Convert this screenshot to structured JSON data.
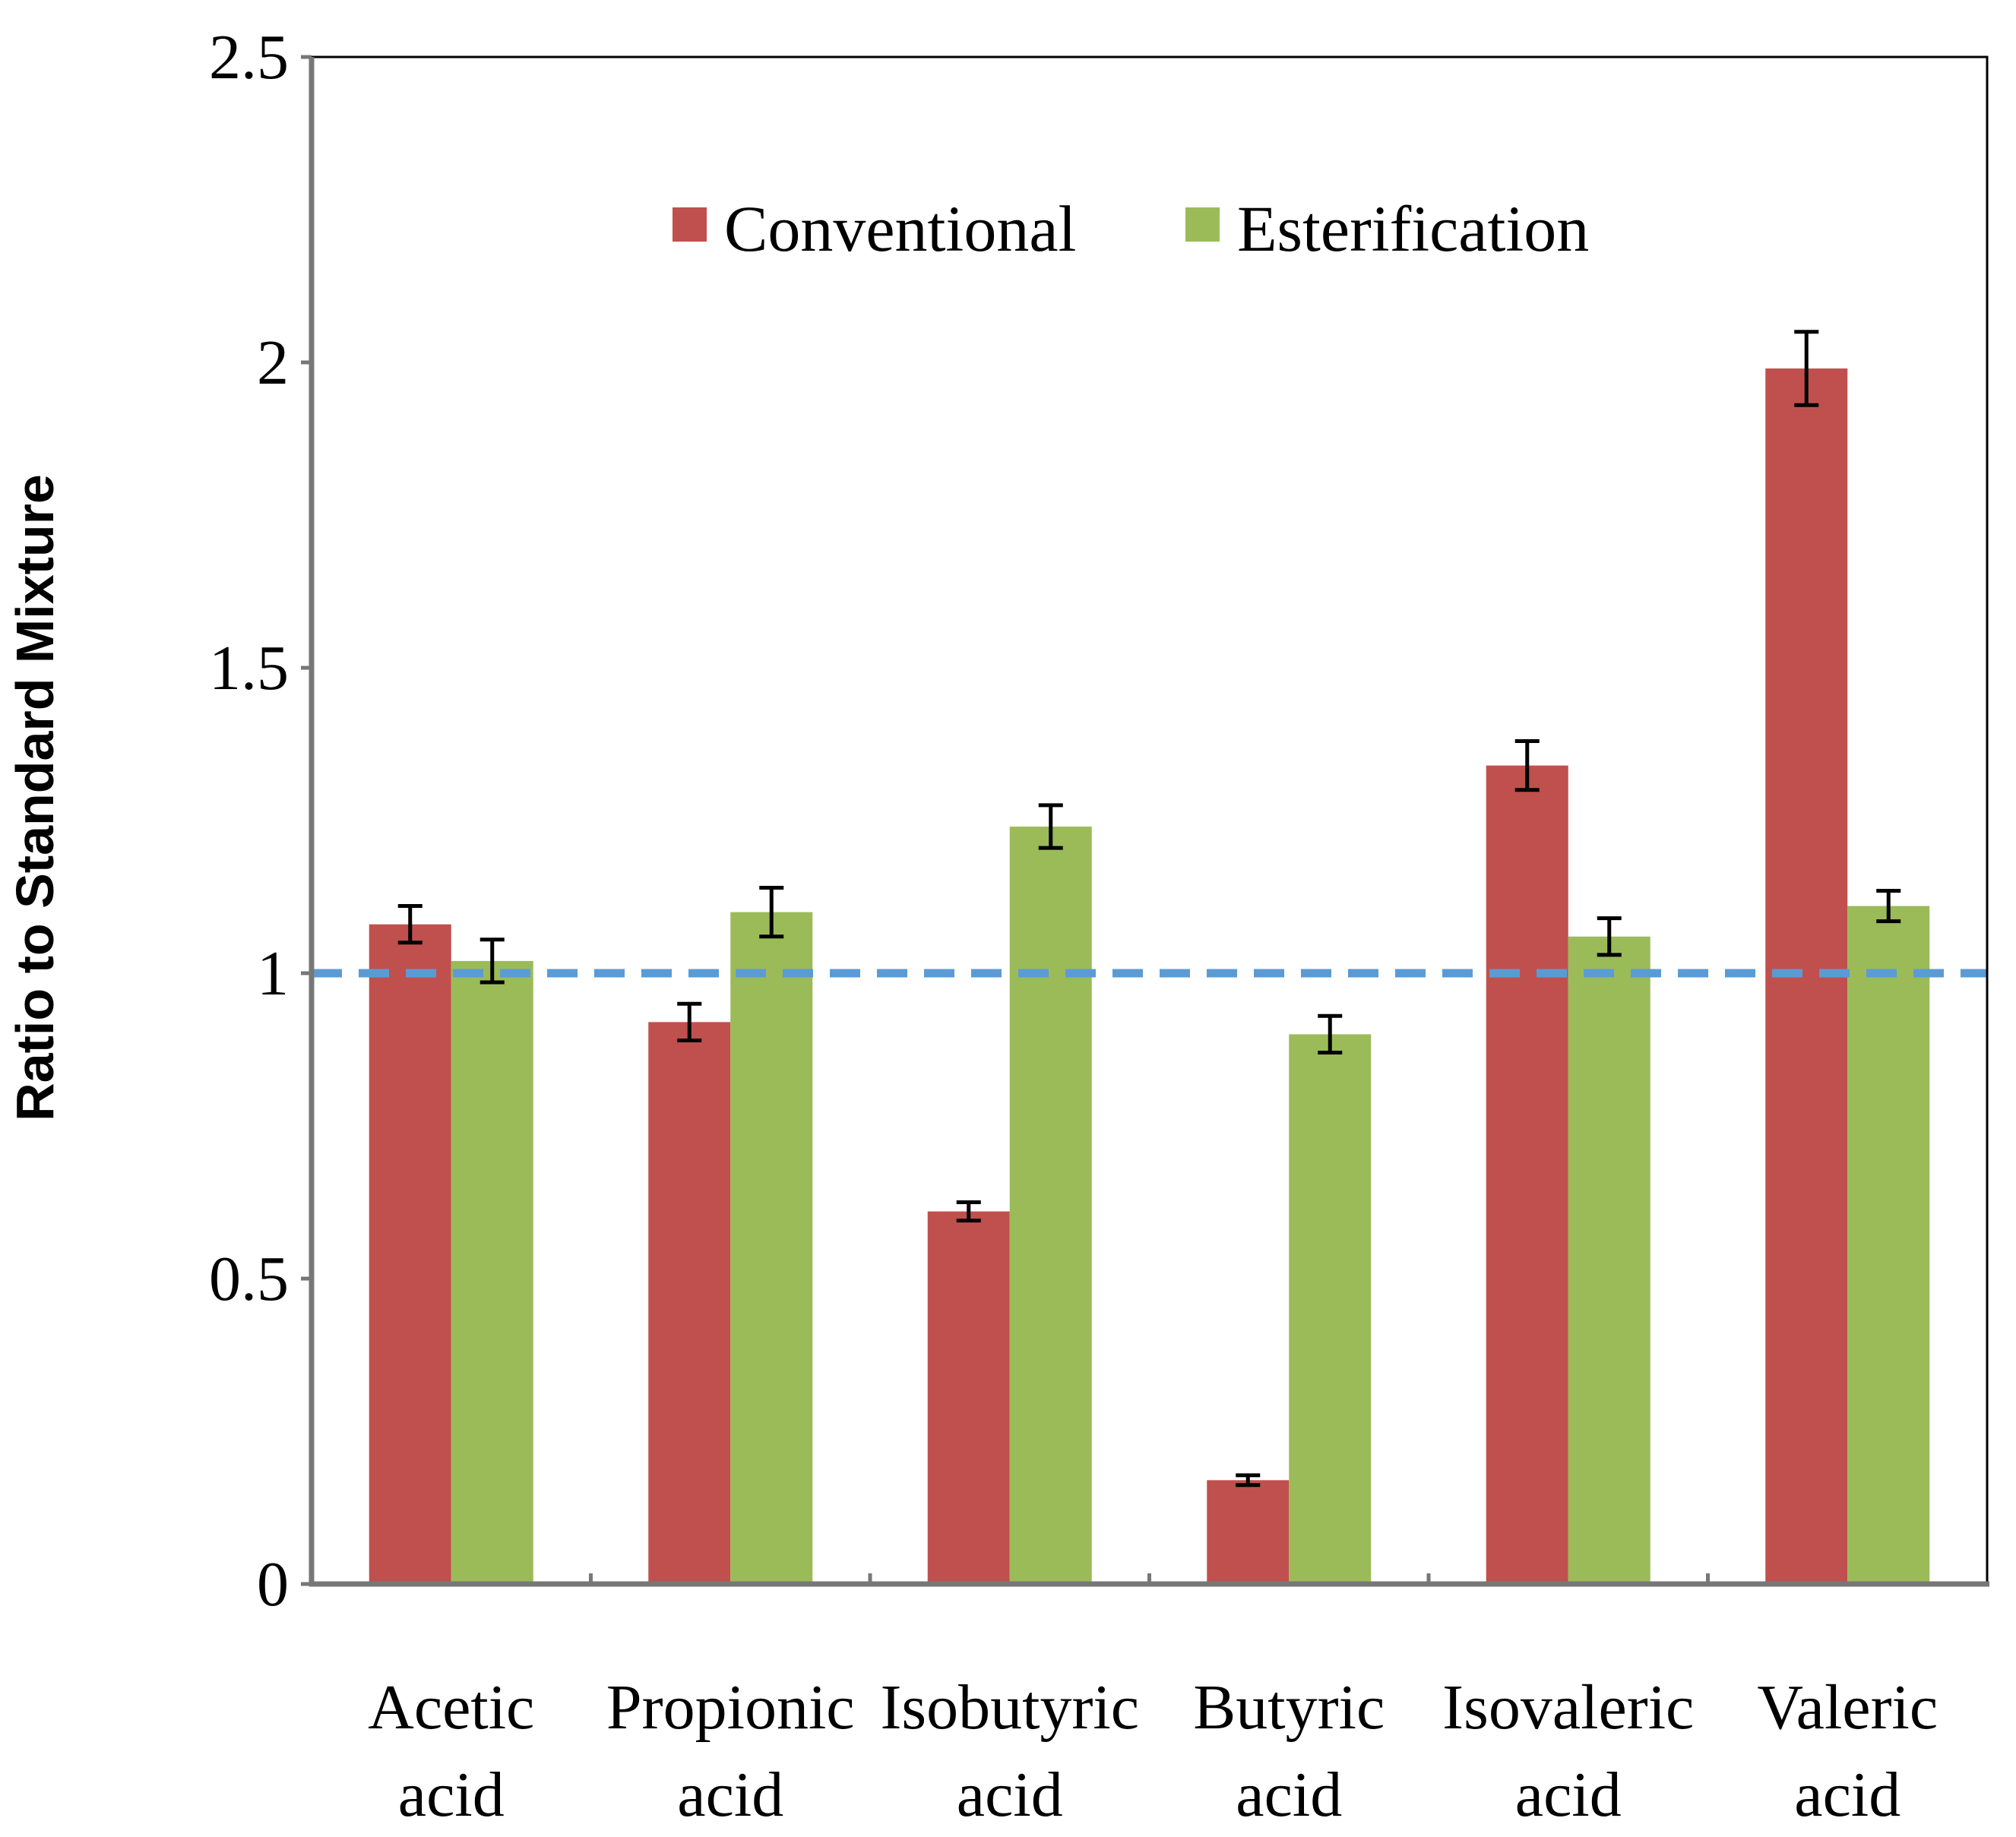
{
  "chart_data": {
    "type": "bar",
    "title": "",
    "xlabel": "",
    "ylabel": "Ratio to Standard Mixture",
    "ylim": [
      0,
      2.5
    ],
    "yticks": [
      "0",
      "0.5",
      "1",
      "1.5",
      "2",
      "2.5"
    ],
    "categories": [
      {
        "line1": "Acetic",
        "line2": "acid"
      },
      {
        "line1": "Propionic",
        "line2": "acid"
      },
      {
        "line1": "Isobutyric",
        "line2": "acid"
      },
      {
        "line1": "Butyric",
        "line2": "acid"
      },
      {
        "line1": "Isovaleric",
        "line2": "acid"
      },
      {
        "line1": "Valeric",
        "line2": "acid"
      }
    ],
    "series": [
      {
        "name": "Conventional",
        "color": "#c0504d",
        "values": [
          1.08,
          0.92,
          0.61,
          0.17,
          1.34,
          1.99
        ],
        "errors": [
          0.03,
          0.03,
          0.015,
          0.008,
          0.04,
          0.06
        ]
      },
      {
        "name": "Esterification",
        "color": "#9bbb59",
        "values": [
          1.02,
          1.1,
          1.24,
          0.9,
          1.06,
          1.11
        ],
        "errors": [
          0.035,
          0.04,
          0.035,
          0.03,
          0.03,
          0.025
        ]
      }
    ],
    "reference_line": {
      "value": 1.0,
      "color": "#5b9bd5",
      "style": "dashed"
    },
    "legend": {
      "position": "top-center"
    },
    "grid": false
  }
}
